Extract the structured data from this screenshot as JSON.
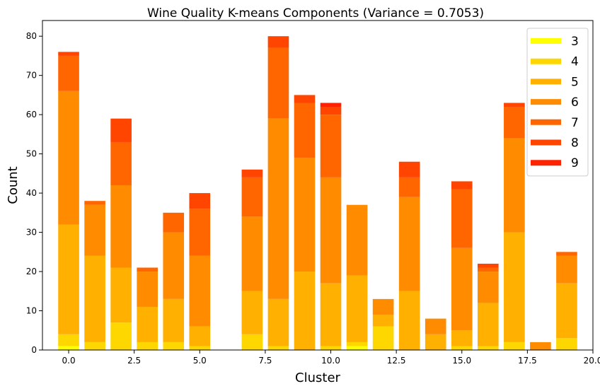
{
  "chart_data": {
    "type": "bar",
    "stacked": true,
    "title": "Wine Quality K-means Components (Variance = 0.7053)",
    "xlabel": "Cluster",
    "ylabel": "Count",
    "xlim": [
      -1.0,
      20.0
    ],
    "ylim": [
      0,
      84
    ],
    "xticks": [
      0.0,
      2.5,
      5.0,
      7.5,
      10.0,
      12.5,
      15.0,
      17.5,
      20.0
    ],
    "xtick_labels": [
      "0.0",
      "2.5",
      "5.0",
      "7.5",
      "10.0",
      "12.5",
      "15.0",
      "17.5",
      "20.0"
    ],
    "yticks": [
      0,
      10,
      20,
      30,
      40,
      50,
      60,
      70,
      80
    ],
    "ytick_labels": [
      "0",
      "10",
      "20",
      "30",
      "40",
      "50",
      "60",
      "70",
      "80"
    ],
    "grid": false,
    "legend_position": "top-right",
    "x": [
      0,
      1,
      2,
      3,
      4,
      5,
      6,
      7,
      8,
      9,
      10,
      11,
      12,
      13,
      14,
      15,
      16,
      17,
      18,
      19
    ],
    "series": [
      {
        "name": "3",
        "color": "#ffff00",
        "values": [
          1,
          0,
          0,
          0,
          0,
          0,
          0,
          0,
          0,
          0,
          0,
          1,
          0,
          0,
          0,
          0,
          0,
          0,
          0,
          0
        ]
      },
      {
        "name": "4",
        "color": "#ffd700",
        "values": [
          3,
          2,
          7,
          2,
          2,
          1,
          0,
          4,
          1,
          0,
          1,
          1,
          6,
          0,
          0,
          1,
          1,
          2,
          0,
          3
        ]
      },
      {
        "name": "5",
        "color": "#ffb000",
        "values": [
          28,
          22,
          14,
          9,
          11,
          5,
          0,
          11,
          12,
          20,
          16,
          17,
          3,
          15,
          4,
          4,
          11,
          28,
          0,
          14
        ]
      },
      {
        "name": "6",
        "color": "#ff8c00",
        "values": [
          34,
          13,
          21,
          9,
          17,
          18,
          0,
          19,
          46,
          29,
          27,
          18,
          4,
          24,
          4,
          21,
          8,
          24,
          2,
          7
        ]
      },
      {
        "name": "7",
        "color": "#ff6600",
        "values": [
          9,
          1,
          11,
          1,
          5,
          12,
          0,
          10,
          18,
          14,
          16,
          0,
          0,
          5,
          0,
          15,
          1,
          8,
          0,
          1
        ]
      },
      {
        "name": "8",
        "color": "#ff4500",
        "values": [
          1,
          0,
          6,
          0,
          0,
          4,
          0,
          2,
          3,
          2,
          2,
          0,
          0,
          4,
          0,
          2,
          1,
          1,
          0,
          0
        ]
      },
      {
        "name": "9",
        "color": "#ff2200",
        "values": [
          0,
          0,
          0,
          0,
          0,
          0,
          0,
          0,
          0,
          0,
          1,
          0,
          0,
          0,
          0,
          0,
          0,
          0,
          0,
          0
        ]
      }
    ]
  }
}
